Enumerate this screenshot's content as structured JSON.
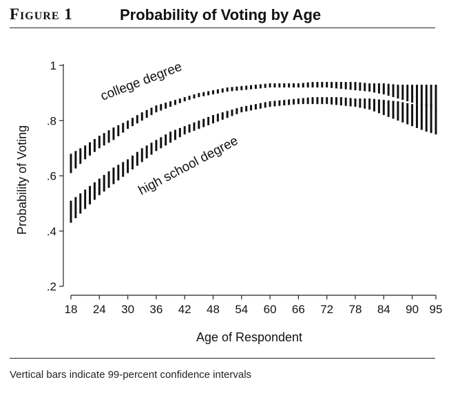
{
  "figure": {
    "label": "Figure 1",
    "title": "Probability of Voting by Age",
    "note": "Vertical bars indicate 99-percent confidence intervals"
  },
  "chart_data": {
    "type": "errorbar",
    "title": "Probability of Voting by Age",
    "xlabel": "Age of Respondent",
    "ylabel": "Probability of Voting",
    "xlim": [
      18,
      95
    ],
    "ylim": [
      0.2,
      1.0
    ],
    "x_ticks": [
      18,
      24,
      30,
      36,
      42,
      48,
      54,
      60,
      66,
      72,
      78,
      84,
      90,
      95
    ],
    "y_ticks": [
      0.2,
      0.4,
      0.6,
      0.8,
      1.0
    ],
    "y_tick_labels": [
      ".2",
      ".4",
      ".6",
      ".8",
      "1"
    ],
    "grid": false,
    "x": [
      18,
      21,
      24,
      27,
      30,
      33,
      36,
      39,
      42,
      45,
      48,
      51,
      54,
      57,
      60,
      63,
      66,
      69,
      72,
      75,
      78,
      81,
      84,
      87,
      90,
      93,
      95
    ],
    "series": [
      {
        "name": "college degree",
        "lower": [
          0.61,
          0.66,
          0.7,
          0.73,
          0.77,
          0.8,
          0.83,
          0.85,
          0.87,
          0.885,
          0.895,
          0.905,
          0.91,
          0.915,
          0.92,
          0.92,
          0.92,
          0.92,
          0.92,
          0.915,
          0.91,
          0.905,
          0.895,
          0.88,
          0.865,
          0.85,
          0.84
        ],
        "upper": [
          0.68,
          0.71,
          0.745,
          0.775,
          0.8,
          0.83,
          0.855,
          0.87,
          0.885,
          0.9,
          0.91,
          0.92,
          0.925,
          0.93,
          0.935,
          0.935,
          0.935,
          0.94,
          0.94,
          0.94,
          0.94,
          0.935,
          0.935,
          0.93,
          0.93,
          0.93,
          0.93
        ]
      },
      {
        "name": "high school degree",
        "lower": [
          0.43,
          0.48,
          0.53,
          0.57,
          0.61,
          0.65,
          0.69,
          0.72,
          0.75,
          0.77,
          0.79,
          0.81,
          0.83,
          0.84,
          0.85,
          0.855,
          0.86,
          0.86,
          0.86,
          0.855,
          0.85,
          0.84,
          0.82,
          0.8,
          0.78,
          0.76,
          0.75
        ],
        "upper": [
          0.51,
          0.55,
          0.59,
          0.63,
          0.66,
          0.7,
          0.73,
          0.76,
          0.78,
          0.8,
          0.82,
          0.835,
          0.85,
          0.86,
          0.87,
          0.875,
          0.88,
          0.885,
          0.885,
          0.885,
          0.88,
          0.88,
          0.875,
          0.87,
          0.86,
          0.86,
          0.86
        ]
      }
    ],
    "annotations": [
      {
        "text": "college degree",
        "x": 27,
        "y": 0.86
      },
      {
        "text": "high school degree",
        "x": 34,
        "y": 0.56
      }
    ]
  }
}
